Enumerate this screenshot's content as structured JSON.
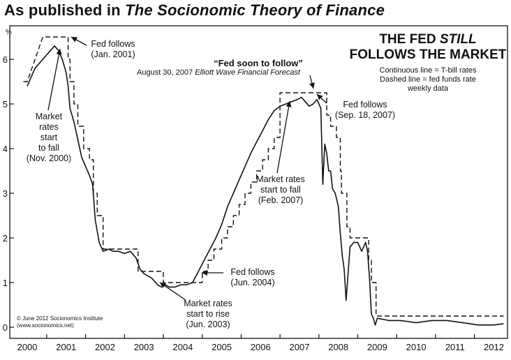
{
  "header": {
    "prefix": "As published in ",
    "book": "The Socionomic Theory of Finance"
  },
  "chart_title": {
    "line1": "THE FED ",
    "line1_em": "STILL",
    "line2": "FOLLOWS THE MARKET"
  },
  "legend": {
    "continuous": "Continuous line = T-bill rates",
    "dashed": "Dashed line = fed funds rate",
    "freq": "weekly data"
  },
  "forecast": {
    "quote": "“Fed soon to follow”",
    "date": "August 30, 2007 ",
    "publication": "Elliott Wave Financial Forecast"
  },
  "annotations": {
    "fed_follows_2001": [
      "Fed follows",
      "(Jan. 2001)"
    ],
    "market_fall_2000": [
      "Market",
      "rates",
      "start",
      "to fall",
      "(Nov. 2000)"
    ],
    "fed_follows_2004": [
      "Fed follows",
      "(Jun. 2004)"
    ],
    "market_rise_2003": [
      "Market rates",
      "start to rise",
      "(Jun. 2003)"
    ],
    "fed_follows_2007": [
      "Fed follows",
      "(Sep. 18, 2007)"
    ],
    "market_fall_2007": [
      "Market rates",
      "start to fall",
      "(Feb. 2007)"
    ]
  },
  "credit": {
    "line1": "© June 2012 Socionomics Institute",
    "line2": "(www.socionomics.net)"
  },
  "colors": {
    "ink": "#111111",
    "background": "#ffffff"
  },
  "chart_data": {
    "type": "line",
    "ylabel": "%",
    "ylim": [
      -0.25,
      6.75
    ],
    "xlim": [
      1999.55,
      2012.35
    ],
    "y_ticks": [
      0,
      1,
      2,
      3,
      4,
      5,
      6
    ],
    "x_tick_labels": [
      "2000",
      "2001",
      "2002",
      "2003",
      "2004",
      "2005",
      "2006",
      "2007",
      "2008",
      "2009",
      "2010",
      "2011",
      "2012"
    ],
    "series": [
      {
        "name": "T-bill rates",
        "style": "solid",
        "x": [
          2000.0,
          2000.1,
          2000.2,
          2000.3,
          2000.4,
          2000.5,
          2000.6,
          2000.7,
          2000.8,
          2000.9,
          2001.0,
          2001.05,
          2001.1,
          2001.2,
          2001.3,
          2001.4,
          2001.5,
          2001.6,
          2001.68,
          2001.75,
          2001.85,
          2001.95,
          2002.1,
          2002.2,
          2002.35,
          2002.5,
          2002.65,
          2002.8,
          2002.9,
          2003.0,
          2003.1,
          2003.2,
          2003.35,
          2003.45,
          2003.55,
          2003.65,
          2003.8,
          2003.95,
          2004.1,
          2004.25,
          2004.4,
          2004.55,
          2004.7,
          2004.85,
          2005.0,
          2005.15,
          2005.3,
          2005.45,
          2005.6,
          2005.75,
          2005.9,
          2006.05,
          2006.2,
          2006.35,
          2006.5,
          2006.65,
          2006.8,
          2006.95,
          2007.05,
          2007.15,
          2007.25,
          2007.35,
          2007.45,
          2007.55,
          2007.6,
          2007.65,
          2007.7,
          2007.75,
          2007.8,
          2007.85,
          2007.92,
          2008.0,
          2008.05,
          2008.1,
          2008.15,
          2008.2,
          2008.25,
          2008.3,
          2008.4,
          2008.5,
          2008.6,
          2008.7,
          2008.75,
          2008.8,
          2008.85,
          2008.9,
          2008.95,
          2009.0,
          2009.3,
          2009.6,
          2010.0,
          2010.4,
          2010.8,
          2011.2,
          2011.6,
          2012.0,
          2012.25
        ],
        "values": [
          5.4,
          5.6,
          5.8,
          5.9,
          6.0,
          6.1,
          6.2,
          6.3,
          6.2,
          6.0,
          5.7,
          5.4,
          4.9,
          4.6,
          4.2,
          3.8,
          3.6,
          3.4,
          3.2,
          2.4,
          1.9,
          1.7,
          1.75,
          1.7,
          1.7,
          1.65,
          1.7,
          1.55,
          1.3,
          1.2,
          1.15,
          1.1,
          0.95,
          0.9,
          0.95,
          0.9,
          0.9,
          0.95,
          0.95,
          1.0,
          1.25,
          1.5,
          1.75,
          2.0,
          2.3,
          2.7,
          3.0,
          3.3,
          3.6,
          3.9,
          4.15,
          4.4,
          4.65,
          4.85,
          4.95,
          5.0,
          5.05,
          5.1,
          5.15,
          5.05,
          4.95,
          5.0,
          5.1,
          4.9,
          3.2,
          4.1,
          3.9,
          3.5,
          3.5,
          3.1,
          3.0,
          2.7,
          2.1,
          1.6,
          1.3,
          0.6,
          1.2,
          1.8,
          1.9,
          1.9,
          1.7,
          1.9,
          1.7,
          1.1,
          0.3,
          0.2,
          0.05,
          0.2,
          0.15,
          0.15,
          0.1,
          0.15,
          0.15,
          0.1,
          0.05,
          0.05,
          0.08
        ]
      },
      {
        "name": "fed funds rate",
        "style": "dashed",
        "x": [
          1999.9,
          2000.0,
          2000.1,
          2000.1,
          2000.2,
          2000.2,
          2000.4,
          2000.4,
          2001.05,
          2001.05,
          2001.1,
          2001.1,
          2001.2,
          2001.2,
          2001.3,
          2001.3,
          2001.45,
          2001.45,
          2001.6,
          2001.6,
          2001.7,
          2001.7,
          2001.8,
          2001.8,
          2001.95,
          2001.95,
          2002.85,
          2002.85,
          2003.5,
          2003.5,
          2004.5,
          2004.5,
          2004.65,
          2004.65,
          2004.8,
          2004.8,
          2005.0,
          2005.0,
          2005.15,
          2005.15,
          2005.3,
          2005.3,
          2005.45,
          2005.45,
          2005.6,
          2005.6,
          2005.75,
          2005.75,
          2005.9,
          2005.9,
          2006.05,
          2006.05,
          2006.2,
          2006.2,
          2006.35,
          2006.35,
          2006.5,
          2006.5,
          2007.7,
          2007.7,
          2007.8,
          2007.8,
          2007.95,
          2007.95,
          2008.05,
          2008.05,
          2008.08,
          2008.08,
          2008.22,
          2008.22,
          2008.3,
          2008.3,
          2008.78,
          2008.78,
          2008.85,
          2008.85,
          2008.97,
          2008.97,
          2012.25
        ],
        "values": [
          5.5,
          5.5,
          5.75,
          5.75,
          6.0,
          6.0,
          6.5,
          6.5,
          6.5,
          6.0,
          6.0,
          5.5,
          5.5,
          5.0,
          5.0,
          4.5,
          4.5,
          4.0,
          4.0,
          3.75,
          3.75,
          3.0,
          3.0,
          2.5,
          2.5,
          1.75,
          1.75,
          1.25,
          1.25,
          1.0,
          1.0,
          1.25,
          1.25,
          1.5,
          1.5,
          1.75,
          1.75,
          2.0,
          2.0,
          2.25,
          2.25,
          2.5,
          2.5,
          2.75,
          2.75,
          3.0,
          3.0,
          3.25,
          3.25,
          3.5,
          3.5,
          3.75,
          3.75,
          4.0,
          4.0,
          4.25,
          4.25,
          5.25,
          5.25,
          4.75,
          4.75,
          4.5,
          4.5,
          4.25,
          4.25,
          3.5,
          3.5,
          3.0,
          3.0,
          2.25,
          2.25,
          2.0,
          2.0,
          1.5,
          1.5,
          1.0,
          1.0,
          0.25,
          0.25
        ]
      }
    ]
  }
}
